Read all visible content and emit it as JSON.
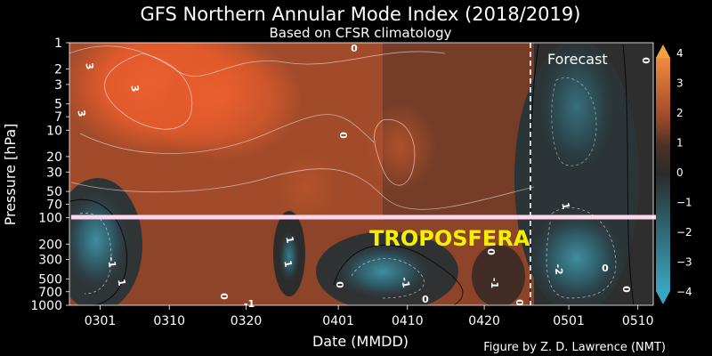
{
  "chart_data": {
    "type": "heatmap",
    "title": "GFS Northern Annular Mode Index (2018/2019)",
    "subtitle": "Based on CFSR climatology",
    "xlabel": "Date (MMDD)",
    "ylabel": "Pressure [hPa]",
    "credit": "Figure by Z. D. Lawrence (NMT)",
    "annotation_forecast": "Forecast",
    "annotation_highlight": "TROPOSFERA",
    "x_ticks": [
      "0301",
      "0310",
      "0320",
      "0401",
      "0410",
      "0420",
      "0501",
      "0510"
    ],
    "y_ticks": [
      "1",
      "2",
      "3",
      "5",
      "7",
      "10",
      "20",
      "30",
      "50",
      "70",
      "100",
      "200",
      "300",
      "500",
      "700",
      "1000"
    ],
    "y_scale": "log",
    "ylim": [
      1000,
      1
    ],
    "colorbar": {
      "ticks": [
        "4",
        "3",
        "2",
        "1",
        "0",
        "−1",
        "−2",
        "−3",
        "−4"
      ],
      "range": [
        -4,
        4
      ],
      "cmap": [
        "#2f9fb8",
        "#3b7080",
        "#333333",
        "#5a3a2e",
        "#a8502e",
        "#e2622e",
        "#f08a3a"
      ]
    },
    "forecast_start": "0426",
    "highlight_level_hPa": 100,
    "colors": {
      "background": "#000000",
      "positive": "#e2622e",
      "neutral": "#333333",
      "negative": "#2f8fa8",
      "highlight_line": "#ffd8ee",
      "highlight_text": "#f4f000"
    },
    "regions": [
      {
        "name": "upper-positive-max",
        "x_center": "0309",
        "p_center": 3,
        "value": 3.5
      },
      {
        "name": "stratosphere-positive",
        "x_center": "0405",
        "p_center": 20,
        "value": 1.5
      },
      {
        "name": "early-trop-negative",
        "x_center": "0301",
        "p_center": 200,
        "value": -2
      },
      {
        "name": "late-march-trop-negative",
        "x_center": "0325",
        "p_center": 300,
        "value": -1.5
      },
      {
        "name": "april-trop-negative",
        "x_center": "0405",
        "p_center": 400,
        "value": -2
      },
      {
        "name": "forecast-negative",
        "x_center": "0501",
        "p_center": 300,
        "value": -2.5
      }
    ],
    "contour_labels": [
      "3",
      "3",
      "3",
      "0",
      "0",
      "1",
      "1",
      "1",
      "-1",
      "0",
      "0",
      "-1",
      "0",
      "0",
      "-1",
      "0",
      "-2",
      "1",
      "0",
      "0",
      "0",
      "-1"
    ]
  }
}
